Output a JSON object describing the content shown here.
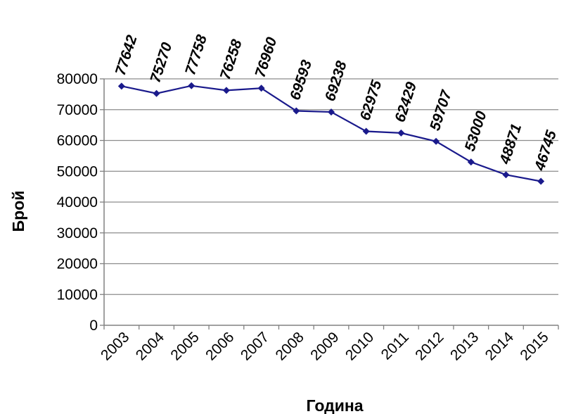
{
  "chart_data": {
    "type": "line",
    "title": "",
    "xlabel": "Година",
    "ylabel": "Брой",
    "categories": [
      "2003",
      "2004",
      "2005",
      "2006",
      "2007",
      "2008",
      "2009",
      "2010",
      "2011",
      "2012",
      "2013",
      "2014",
      "2015"
    ],
    "series": [
      {
        "values": [
          77642,
          75270,
          77758,
          76258,
          76960,
          69593,
          69238,
          62975,
          62429,
          59707,
          53000,
          48871,
          46745
        ],
        "color": "#1a1a8c"
      }
    ],
    "data_labels": [
      "77642",
      "75270",
      "77758",
      "76258",
      "76960",
      "69593",
      "69238",
      "62975",
      "62429",
      "59707",
      "53000",
      "48871",
      "46745"
    ],
    "ylim": [
      0,
      80000
    ],
    "yticks": [
      0,
      10000,
      20000,
      30000,
      40000,
      50000,
      60000,
      70000,
      80000
    ],
    "ytick_labels": [
      "0",
      "10000",
      "20000",
      "30000",
      "40000",
      "50000",
      "60000",
      "70000",
      "80000"
    ],
    "grid": true,
    "legend": "none"
  }
}
